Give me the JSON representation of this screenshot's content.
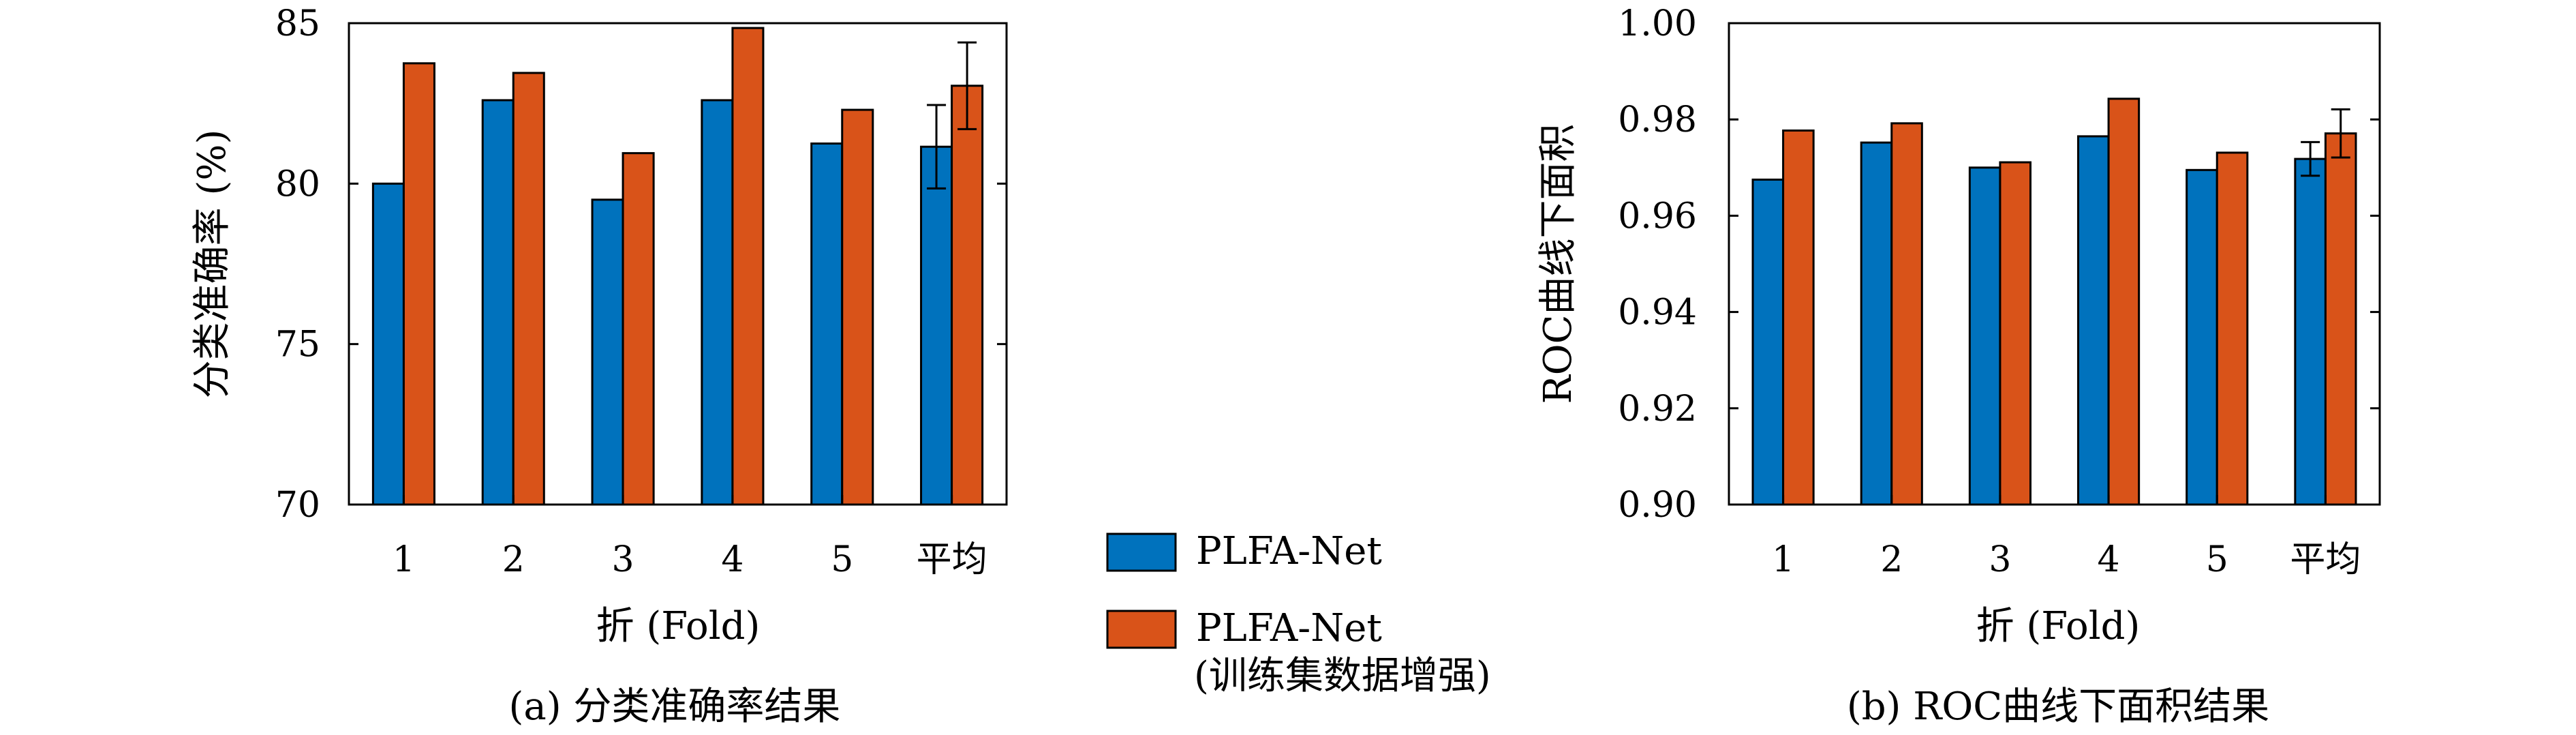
{
  "colors": {
    "series1": "#0072BD",
    "series2": "#D95319",
    "axis": "#000000"
  },
  "legend": {
    "series1_label": "PLFA-Net",
    "series2_label_line1": "PLFA-Net",
    "series2_label_line2": "(训练集数据增强)"
  },
  "chart_data": [
    {
      "type": "bar",
      "caption": "(a) 分类准确率结果",
      "xlabel": "折 (Fold)",
      "ylabel": "分类准确率 (%)",
      "categories": [
        "1",
        "2",
        "3",
        "4",
        "5",
        "平均"
      ],
      "ylim": [
        70,
        85
      ],
      "yticks": [
        70,
        75,
        80,
        85
      ],
      "ytick_labels": [
        "70",
        "75",
        "80",
        "85"
      ],
      "series": [
        {
          "name": "PLFA-Net",
          "values": [
            80.0,
            82.6,
            79.5,
            82.6,
            81.25,
            81.15
          ],
          "errors": [
            null,
            null,
            null,
            null,
            null,
            1.3
          ]
        },
        {
          "name": "PLFA-Net (训练集数据增强)",
          "values": [
            83.75,
            83.45,
            80.95,
            84.85,
            82.3,
            83.05
          ],
          "errors": [
            null,
            null,
            null,
            null,
            null,
            1.35
          ]
        }
      ]
    },
    {
      "type": "bar",
      "caption": "(b) ROC曲线下面积结果",
      "xlabel": "折 (Fold)",
      "ylabel": "ROC曲线下面积",
      "categories": [
        "1",
        "2",
        "3",
        "4",
        "5",
        "平均"
      ],
      "ylim": [
        0.9,
        1.0
      ],
      "yticks": [
        0.9,
        0.92,
        0.94,
        0.96,
        0.98,
        1.0
      ],
      "ytick_labels": [
        "0.90",
        "0.92",
        "0.94",
        "0.96",
        "0.98",
        "1.00"
      ],
      "series": [
        {
          "name": "PLFA-Net",
          "values": [
            0.9675,
            0.9752,
            0.97,
            0.9765,
            0.9695,
            0.9718
          ],
          "errors": [
            null,
            null,
            null,
            null,
            null,
            0.0035
          ]
        },
        {
          "name": "PLFA-Net (训练集数据增强)",
          "values": [
            0.9777,
            0.9792,
            0.9711,
            0.9843,
            0.9731,
            0.9771
          ],
          "errors": [
            null,
            null,
            null,
            null,
            null,
            0.005
          ]
        }
      ]
    }
  ]
}
